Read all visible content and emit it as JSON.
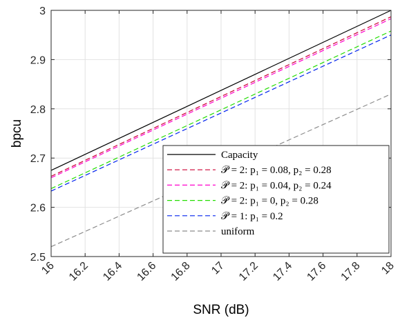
{
  "chart_data": {
    "type": "line",
    "xlabel": "SNR (dB)",
    "ylabel": "bpcu",
    "xlim": [
      16,
      18
    ],
    "ylim": [
      2.5,
      3.0
    ],
    "xticks": [
      "16",
      "16.2",
      "16.4",
      "16.6",
      "16.8",
      "17",
      "17.2",
      "17.4",
      "17.6",
      "17.8",
      "18"
    ],
    "yticks": [
      "2.5",
      "2.6",
      "2.7",
      "2.8",
      "2.9",
      "3"
    ],
    "grid": true,
    "legend_position": "bottom-right",
    "series": [
      {
        "name": "Capacity",
        "color": "#000000",
        "dash": "solid",
        "x": [
          16,
          18
        ],
        "y": [
          2.675,
          3.0
        ]
      },
      {
        "name": "𝒫 = 2:  p₁ = 0.08, p₂ = 0.28",
        "color": "#cc0033",
        "dash": "dashed",
        "x": [
          16,
          18
        ],
        "y": [
          2.663,
          2.987
        ]
      },
      {
        "name": "𝒫 = 2:  p₁ = 0.04, p₂ = 0.24",
        "color": "#ff00cc",
        "dash": "dashed",
        "x": [
          16,
          18
        ],
        "y": [
          2.66,
          2.983
        ]
      },
      {
        "name": "𝒫 = 2:  p₁ = 0, p₂ = 0.28",
        "color": "#22dd00",
        "dash": "dashed",
        "x": [
          16,
          18
        ],
        "y": [
          2.638,
          2.958
        ]
      },
      {
        "name": "𝒫 = 1:  p₁ = 0.2",
        "color": "#0022ee",
        "dash": "dashed",
        "x": [
          16,
          18
        ],
        "y": [
          2.633,
          2.95
        ]
      },
      {
        "name": "uniform",
        "color": "#8c8c8c",
        "dash": "dashed",
        "x": [
          16,
          18
        ],
        "y": [
          2.52,
          2.83
        ]
      }
    ]
  }
}
